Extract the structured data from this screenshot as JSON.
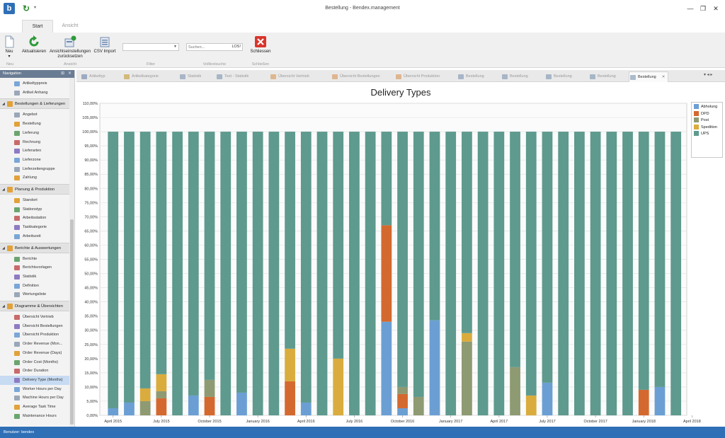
{
  "window": {
    "title": "Bestellung - Bendex.management",
    "minimize": "—",
    "restore": "❐",
    "close": "✕"
  },
  "ribbon": {
    "tabs": [
      {
        "label": "Start"
      },
      {
        "label": "Ansicht"
      }
    ],
    "buttons": {
      "neu": "Neu",
      "aktualisieren": "Aktualisieren",
      "reset_line1": "Ansichtseinstellungen",
      "reset_line2": "zurücksetzen",
      "csv_import": "CSV Import",
      "schliessen": "Schliessen"
    },
    "groups": {
      "neu": "Neu",
      "ansicht": "Ansicht",
      "filter": "Filter",
      "volltextsuche": "Volltextsuche",
      "schliessen": "Schließen"
    },
    "filter_value": "",
    "search": {
      "placeholder": "Suchen...",
      "go": "LOS!"
    }
  },
  "navigation": {
    "title": "Navigation",
    "pin": "⊞",
    "close": "✕",
    "groups": [
      {
        "label": "Bestellungen & Lieferungen"
      },
      {
        "label": "Planung & Produktion"
      },
      {
        "label": "Berichte & Auswertungen"
      },
      {
        "label": "Diagramme & Übersichten"
      }
    ],
    "items": {
      "top": [
        "Artikeltyppreis",
        "Artikel Anhang"
      ],
      "bestellungen": [
        "Angebot",
        "Bestellung",
        "Lieferung",
        "Rechnung",
        "Lieferarten",
        "Lieferzone",
        "Lieferzeitengruppe",
        "Zahlung"
      ],
      "planung": [
        "Standort",
        "Stationstyp",
        "Arbeitsstation",
        "Taskkategorie",
        "Arbeitszeit"
      ],
      "berichte": [
        "Berichte",
        "Berichtsvorlagen",
        "Statistik",
        "Definition",
        "Wertungsliste"
      ],
      "diagramme": [
        "Übersicht Vertrieb",
        "Übersicht Bestellungen",
        "Übersicht Produktion",
        "Order Revenue (Mon...",
        "Order Revenue (Days)",
        "Order Cost (Months)",
        "Order Duration",
        "Delivery Type (Months)",
        "Worker Hours per Day",
        "Machine Hours per Day",
        "Average Task Time",
        "Maintenance Hours"
      ]
    }
  },
  "doc_tabs": [
    {
      "label": "Artikeltyp"
    },
    {
      "label": "Artikelkategorie"
    },
    {
      "label": "Statistik"
    },
    {
      "label": "Test - Statistik"
    },
    {
      "label": "Übersicht Vertrieb"
    },
    {
      "label": "Übersicht Bestellungen"
    },
    {
      "label": "Übersicht Produktion"
    },
    {
      "label": "Bestellung"
    },
    {
      "label": "Bestellung"
    },
    {
      "label": "Bestellung"
    },
    {
      "label": "Bestellung"
    },
    {
      "label": "Bestellung"
    }
  ],
  "doc_tab_close": "✕",
  "tabs_menu": "▾  ◂  ▸",
  "status": {
    "user": "Benutzer: bendex"
  },
  "chart_data": {
    "type": "bar",
    "stacked": true,
    "title": "Delivery Types",
    "xlabel": "",
    "ylabel": "",
    "ylim": [
      0,
      110
    ],
    "y_ticks": [
      "0,00%",
      "5,00%",
      "10,00%",
      "15,00%",
      "20,00%",
      "25,00%",
      "30,00%",
      "35,00%",
      "40,00%",
      "45,00%",
      "50,00%",
      "55,00%",
      "60,00%",
      "65,00%",
      "70,00%",
      "75,00%",
      "80,00%",
      "85,00%",
      "90,00%",
      "95,00%",
      "100,00%",
      "105,00%",
      "110,00%"
    ],
    "x_ticks": [
      {
        "label": "April 2015",
        "index": 0
      },
      {
        "label": "July 2015",
        "index": 3
      },
      {
        "label": "October 2015",
        "index": 6
      },
      {
        "label": "January 2016",
        "index": 9
      },
      {
        "label": "April 2016",
        "index": 12
      },
      {
        "label": "July 2016",
        "index": 15
      },
      {
        "label": "October 2016",
        "index": 18
      },
      {
        "label": "January 2017",
        "index": 21
      },
      {
        "label": "April 2017",
        "index": 24
      },
      {
        "label": "July 2017",
        "index": 27
      },
      {
        "label": "October 2017",
        "index": 30
      },
      {
        "label": "January 2018",
        "index": 33
      },
      {
        "label": "April 2018",
        "index": 36
      }
    ],
    "categories_count": 36,
    "legend_placement": "right",
    "grid": true,
    "series": [
      {
        "name": "Abholung",
        "color": "#6b9fd4",
        "values": [
          2.5,
          4.5,
          0,
          0,
          0,
          7,
          0,
          0,
          8,
          0,
          0,
          0,
          4.5,
          0,
          0,
          0,
          0,
          33,
          2.5,
          0,
          33.5,
          0,
          0,
          0,
          0,
          0,
          0,
          11.5,
          0,
          0,
          0,
          0,
          0,
          0,
          10,
          0
        ]
      },
      {
        "name": "DPD",
        "color": "#d4692f",
        "values": [
          0,
          0,
          0,
          6,
          0,
          0,
          6.5,
          0,
          0,
          0,
          0,
          12,
          0,
          0,
          0,
          0,
          0,
          34,
          5,
          0,
          0,
          0,
          0,
          0,
          0,
          0,
          0,
          0,
          0,
          0,
          0,
          0,
          0,
          9,
          0,
          0
        ]
      },
      {
        "name": "Post",
        "color": "#8e9a72",
        "values": [
          0,
          0,
          5,
          2.5,
          0,
          0,
          6,
          0,
          0,
          0,
          0,
          0,
          0,
          0,
          0,
          0,
          0,
          0,
          2.5,
          6.5,
          0,
          0,
          26,
          0,
          0,
          17,
          0,
          0,
          0,
          0,
          0,
          0,
          0,
          0,
          0,
          0
        ]
      },
      {
        "name": "Spedition",
        "color": "#d9ac3d",
        "values": [
          0,
          0,
          4.5,
          6,
          0,
          0,
          0,
          0,
          0,
          0,
          0,
          11.5,
          0,
          0,
          20,
          0,
          0,
          0,
          0,
          0,
          0,
          0,
          3,
          0,
          0,
          0,
          7,
          0,
          0,
          0,
          0,
          0,
          0,
          0,
          0,
          0
        ]
      },
      {
        "name": "UPS",
        "color": "#5e9a8e",
        "values": [
          97.5,
          95.5,
          90.5,
          85.5,
          100,
          93,
          87.5,
          100,
          92,
          100,
          100,
          76.5,
          95.5,
          100,
          80,
          100,
          100,
          33,
          90,
          93.5,
          66.5,
          100,
          71,
          100,
          100,
          83,
          93,
          88.5,
          100,
          100,
          100,
          100,
          100,
          91,
          90,
          100
        ]
      }
    ]
  }
}
